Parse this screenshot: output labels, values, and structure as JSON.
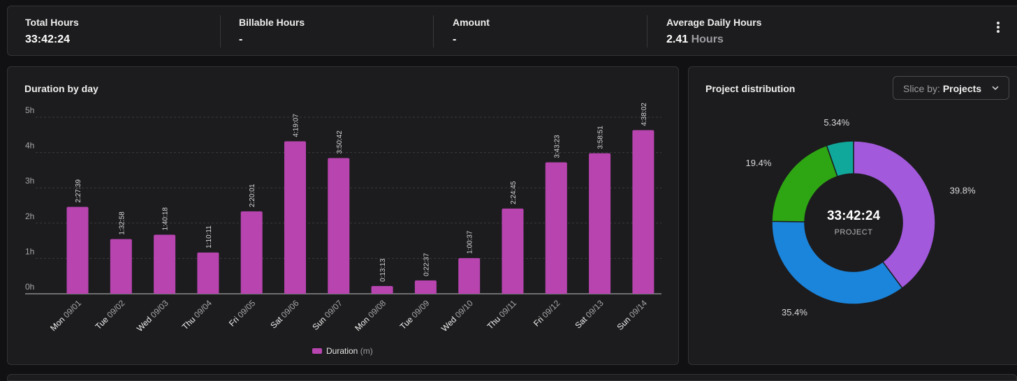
{
  "summary": {
    "total_hours": {
      "label": "Total Hours",
      "value": "33:42:24"
    },
    "billable_hours": {
      "label": "Billable Hours",
      "value": "-"
    },
    "amount": {
      "label": "Amount",
      "value": "-"
    },
    "average_daily": {
      "label": "Average Daily Hours",
      "value": "2.41",
      "unit": "Hours"
    }
  },
  "bar_panel": {
    "title": "Duration by day"
  },
  "pie_panel": {
    "title": "Project distribution",
    "slice_prefix": "Slice by:",
    "slice_value": "Projects",
    "center_value": "33:42:24",
    "center_label": "PROJECT"
  },
  "chart_data": [
    {
      "type": "bar",
      "title": "Duration by day",
      "categories": [
        {
          "day": "Mon",
          "date": "09/01"
        },
        {
          "day": "Tue",
          "date": "09/02"
        },
        {
          "day": "Wed",
          "date": "09/03"
        },
        {
          "day": "Thu",
          "date": "09/04"
        },
        {
          "day": "Fri",
          "date": "09/05"
        },
        {
          "day": "Sat",
          "date": "09/06"
        },
        {
          "day": "Sun",
          "date": "09/07"
        },
        {
          "day": "Mon",
          "date": "09/08"
        },
        {
          "day": "Tue",
          "date": "09/09"
        },
        {
          "day": "Wed",
          "date": "09/10"
        },
        {
          "day": "Thu",
          "date": "09/11"
        },
        {
          "day": "Fri",
          "date": "09/12"
        },
        {
          "day": "Sat",
          "date": "09/13"
        },
        {
          "day": "Sun",
          "date": "09/14"
        }
      ],
      "series": [
        {
          "name": "Duration",
          "unit": "(m)",
          "color": "#b844b0",
          "labels": [
            "2:27:39",
            "1:32:58",
            "1:40:18",
            "1:10:11",
            "2:20:01",
            "4:19:07",
            "3:50:42",
            "0:13:13",
            "0:22:37",
            "1:00:37",
            "2:24:45",
            "3:43:23",
            "3:58:51",
            "4:38:02"
          ],
          "values_minutes": [
            147.65,
            92.97,
            100.3,
            70.18,
            140.02,
            259.12,
            230.7,
            13.22,
            22.62,
            60.62,
            144.75,
            223.38,
            238.85,
            278.03
          ]
        }
      ],
      "y_ticks": [
        "0h",
        "1h",
        "2h",
        "3h",
        "4h",
        "5h"
      ],
      "ylim_minutes": [
        0,
        300
      ],
      "grid": true,
      "legend": "bottom-center"
    },
    {
      "type": "pie",
      "title": "Project distribution",
      "slices": [
        {
          "label": "39.8%",
          "value": 39.8,
          "color": "#a259dc"
        },
        {
          "label": "35.4%",
          "value": 35.4,
          "color": "#1b84db"
        },
        {
          "label": "19.4%",
          "value": 19.4,
          "color": "#2ea513"
        },
        {
          "label": "5.34%",
          "value": 5.34,
          "color": "#11a89c"
        }
      ]
    }
  ]
}
